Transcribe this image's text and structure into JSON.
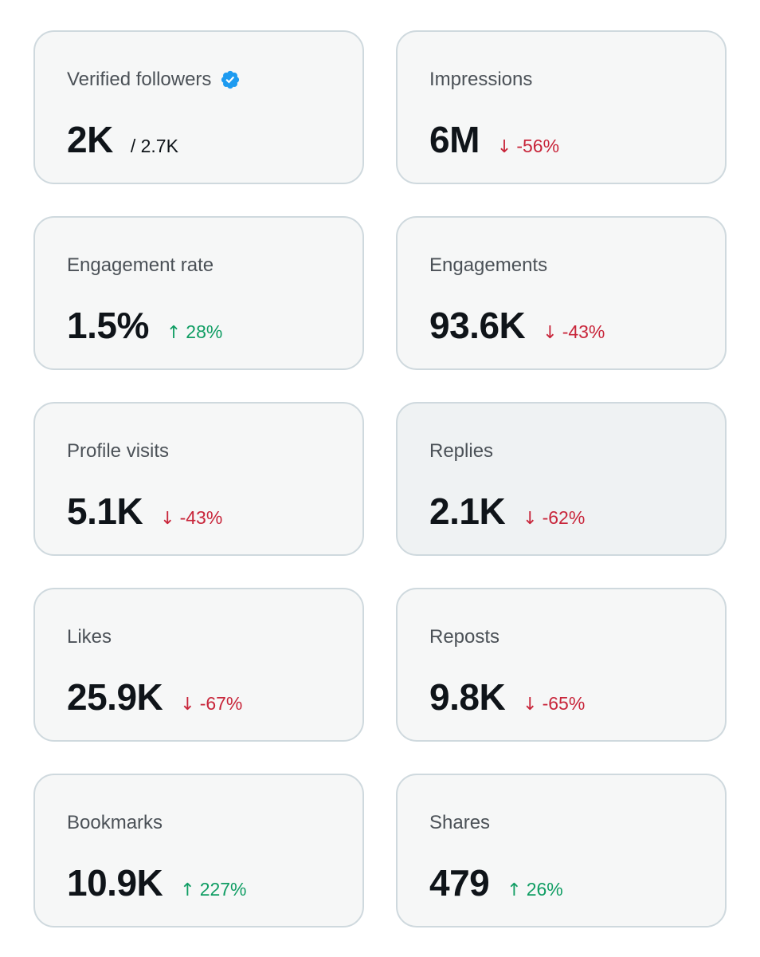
{
  "colors": {
    "card_bg": "#f6f7f7",
    "card_border": "#cfd9de",
    "text_primary": "#0f1419",
    "text_secondary": "#4b5157",
    "down": "#c8253a",
    "up": "#0f9d63",
    "verified": "#1d9bf0"
  },
  "cards": [
    {
      "label": "Verified followers",
      "value": "2K",
      "sub": "/ 2.7K",
      "icon": "verified-badge-icon"
    },
    {
      "label": "Impressions",
      "value": "6M",
      "change": "-56%",
      "direction": "down",
      "arrow": "↓"
    },
    {
      "label": "Engagement rate",
      "value": "1.5%",
      "change": "28%",
      "direction": "up",
      "arrow": "↑"
    },
    {
      "label": "Engagements",
      "value": "93.6K",
      "change": "-43%",
      "direction": "down",
      "arrow": "↓"
    },
    {
      "label": "Profile visits",
      "value": "5.1K",
      "change": "-43%",
      "direction": "down",
      "arrow": "↓"
    },
    {
      "label": "Replies",
      "value": "2.1K",
      "change": "-62%",
      "direction": "down",
      "arrow": "↓"
    },
    {
      "label": "Likes",
      "value": "25.9K",
      "change": "-67%",
      "direction": "down",
      "arrow": "↓"
    },
    {
      "label": "Reposts",
      "value": "9.8K",
      "change": "-65%",
      "direction": "down",
      "arrow": "↓"
    },
    {
      "label": "Bookmarks",
      "value": "10.9K",
      "change": "227%",
      "direction": "up",
      "arrow": "↑"
    },
    {
      "label": "Shares",
      "value": "479",
      "change": "26%",
      "direction": "up",
      "arrow": "↑"
    }
  ]
}
